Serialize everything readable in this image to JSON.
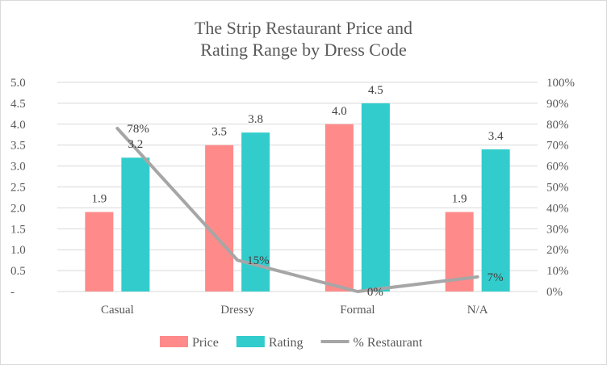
{
  "chart_data": {
    "type": "bar",
    "title": "The Strip Restaurant Price and Rating Range by Dress Code",
    "title_lines": [
      "The Strip Restaurant Price and",
      "Rating Range by Dress Code"
    ],
    "categories": [
      "Casual",
      "Dressy",
      "Formal",
      "N/A"
    ],
    "series": [
      {
        "name": "Price",
        "kind": "bar",
        "axis": "left",
        "color": "#FF8A8A",
        "values": [
          1.9,
          3.5,
          4.0,
          1.9
        ],
        "labels": [
          "1.9",
          "3.5",
          "4.0",
          "1.9"
        ]
      },
      {
        "name": "Rating",
        "kind": "bar",
        "axis": "left",
        "color": "#33CCCC",
        "values": [
          3.2,
          3.8,
          4.5,
          3.4
        ],
        "labels": [
          "3.2",
          "3.8",
          "4.5",
          "3.4"
        ]
      },
      {
        "name": "% Restaurant",
        "kind": "line",
        "axis": "right",
        "color": "#A6A6A6",
        "values": [
          78,
          15,
          0,
          7
        ],
        "labels": [
          "78%",
          "15%",
          "0%",
          "7%"
        ]
      }
    ],
    "y_left": {
      "range": [
        0,
        5
      ],
      "ticks": [
        0,
        0.5,
        1,
        1.5,
        2,
        2.5,
        3,
        3.5,
        4,
        4.5,
        5
      ],
      "tick_labels": [
        "-",
        "0.5",
        "1.0",
        "1.5",
        "2.0",
        "2.5",
        "3.0",
        "3.5",
        "4.0",
        "4.5",
        "5.0"
      ]
    },
    "y_right": {
      "range": [
        0,
        100
      ],
      "ticks": [
        0,
        10,
        20,
        30,
        40,
        50,
        60,
        70,
        80,
        90,
        100
      ],
      "tick_labels": [
        "0%",
        "10%",
        "20%",
        "30%",
        "40%",
        "50%",
        "60%",
        "70%",
        "80%",
        "90%",
        "100%"
      ]
    },
    "grid": true,
    "legend_position": "bottom"
  }
}
